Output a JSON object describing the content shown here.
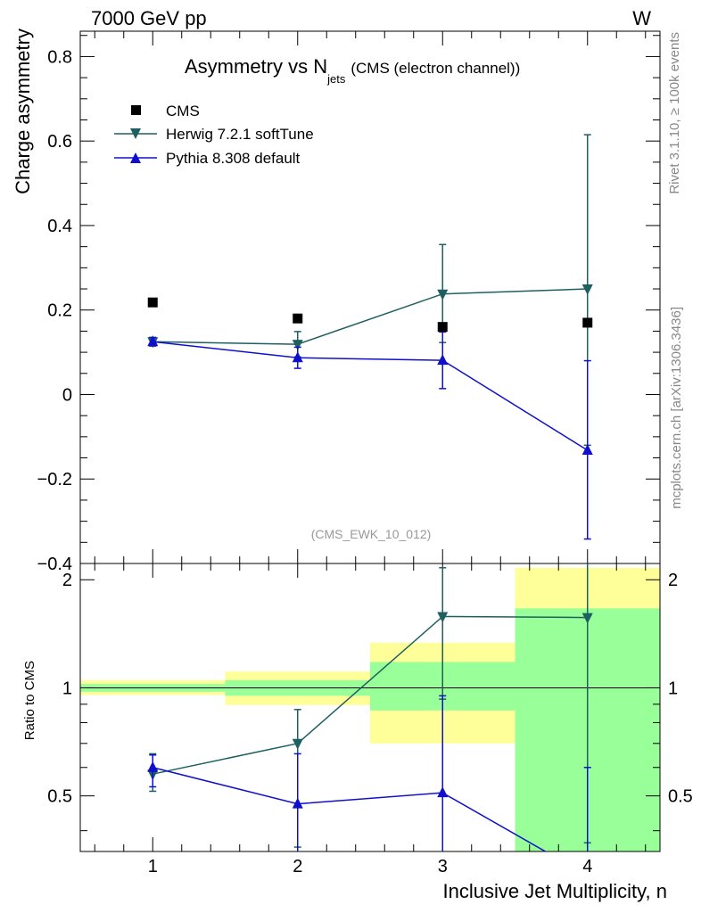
{
  "header": {
    "left": "7000 GeV pp",
    "right": "W"
  },
  "side_labels": {
    "rivet": "Rivet 3.1.10, ≥ 100k events",
    "mcplots": "mcplots.cern.ch [arXiv:1306.3436]"
  },
  "title": {
    "main": "Asymmetry vs N",
    "sub": "jets",
    "suffix": "(CMS (electron channel))"
  },
  "watermark": "(CMS_EWK_10_012)",
  "legend": {
    "cms": "CMS",
    "herwig": "Herwig 7.2.1 softTune",
    "pythia": "Pythia 8.308 default"
  },
  "colors": {
    "cms": "#000000",
    "herwig": "#1e6060",
    "pythia": "#1010cc",
    "band_inner": "#99ff99",
    "band_outer": "#ffff99"
  },
  "chart_data": [
    {
      "type": "scatter",
      "panel": "main",
      "ylabel": "Charge asymmetry",
      "xlim": [
        0.5,
        4.5
      ],
      "ylim": [
        -0.4,
        0.86
      ],
      "yticks": [
        -0.4,
        -0.2,
        0,
        0.2,
        0.4,
        0.6,
        0.8
      ],
      "ytick_labels": [
        "−0.4",
        "−0.2",
        "0",
        "0.2",
        "0.4",
        "0.6",
        "0.8"
      ],
      "x": [
        1,
        2,
        3,
        4
      ],
      "series": [
        {
          "name": "CMS",
          "values": [
            0.218,
            0.18,
            0.16,
            0.17
          ],
          "err_low": [
            0,
            0,
            0,
            0
          ],
          "err_high": [
            0,
            0,
            0,
            0
          ]
        },
        {
          "name": "Herwig 7.2.1 softTune",
          "values": [
            0.125,
            0.119,
            0.238,
            0.25
          ],
          "err_low": [
            0.01,
            0.03,
            0.115,
            0.37
          ],
          "err_high": [
            0.01,
            0.03,
            0.117,
            0.365
          ]
        },
        {
          "name": "Pythia 8.308 default",
          "values": [
            0.125,
            0.087,
            0.081,
            -0.132
          ],
          "err_low": [
            0.01,
            0.025,
            0.067,
            0.21
          ],
          "err_high": [
            0.01,
            0.025,
            0.067,
            0.212
          ]
        }
      ]
    },
    {
      "type": "scatter",
      "panel": "ratio",
      "ylabel": "Ratio to CMS",
      "xlabel": "Inclusive Jet Multiplicity, n",
      "xlim": [
        0.5,
        4.5
      ],
      "ylim": [
        0.35,
        2.22
      ],
      "yticks": [
        0.5,
        1,
        2
      ],
      "ytick_labels": [
        "0.5",
        "1",
        "2"
      ],
      "xticks": [
        1,
        2,
        3,
        4
      ],
      "xtick_labels": [
        "1",
        "2",
        "3",
        "4"
      ],
      "bands": [
        {
          "x0": 0.5,
          "x1": 1.5,
          "inner": [
            0.975,
            1.025
          ],
          "outer": [
            0.955,
            1.05
          ]
        },
        {
          "x0": 1.5,
          "x1": 2.5,
          "inner": [
            0.95,
            1.05
          ],
          "outer": [
            0.895,
            1.11
          ]
        },
        {
          "x0": 2.5,
          "x1": 3.5,
          "inner": [
            0.865,
            1.18
          ],
          "outer": [
            0.7,
            1.335
          ]
        },
        {
          "x0": 3.5,
          "x1": 4.5,
          "inner": [
            0.35,
            1.665
          ],
          "outer": [
            0.35,
            2.16
          ]
        }
      ],
      "x": [
        1,
        2,
        3,
        4
      ],
      "series": [
        {
          "name": "Herwig 7.2.1 softTune",
          "values": [
            0.575,
            0.7,
            1.58,
            1.57
          ],
          "err_low": [
            0.06,
            0.34,
            0.65,
            1.2
          ],
          "err_high": [
            0.08,
            0.17,
            0.58,
            0.7
          ]
        },
        {
          "name": "Pythia 8.308 default",
          "values": [
            0.6,
            0.475,
            0.51,
            0.3
          ],
          "err_low": [
            0.07,
            0.15,
            0.42,
            0.3
          ],
          "err_high": [
            0.05,
            0.18,
            0.44,
            0.3
          ]
        }
      ]
    }
  ]
}
